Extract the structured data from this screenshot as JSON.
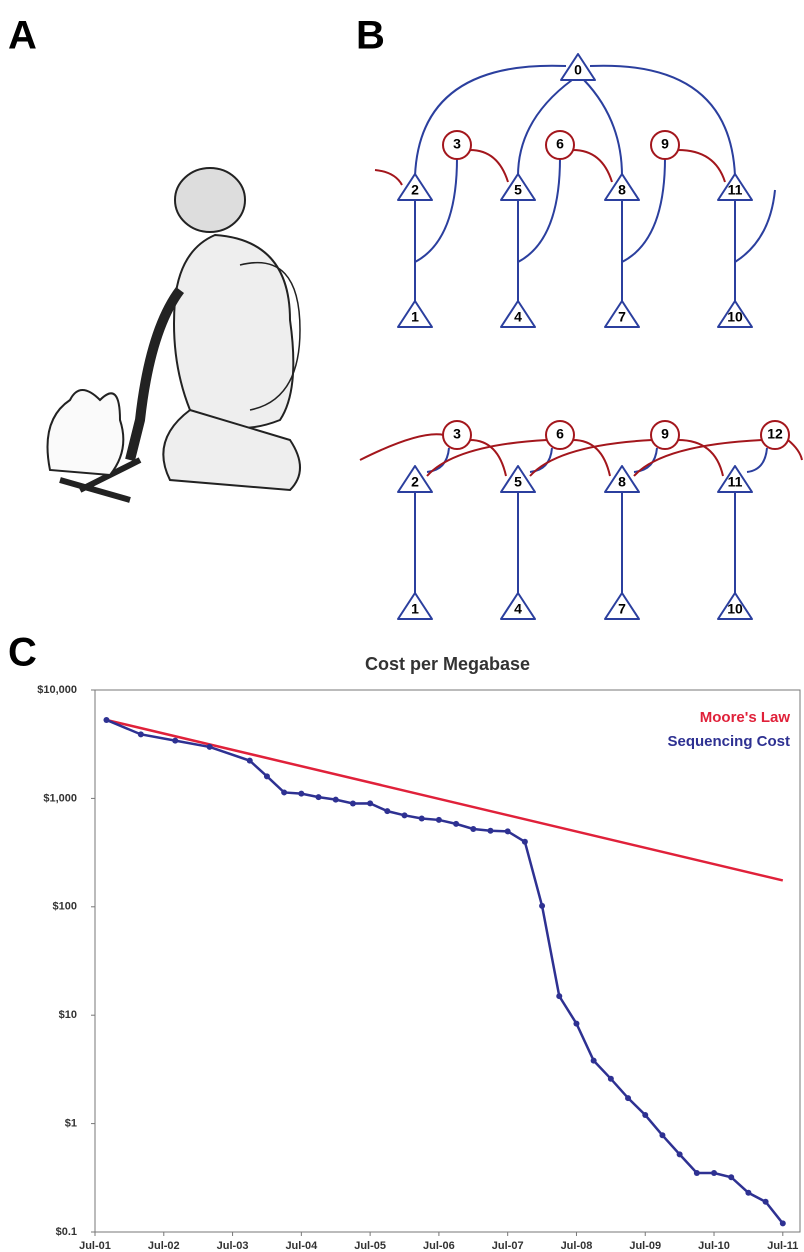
{
  "panels": {
    "a": "A",
    "b": "B",
    "c": "C"
  },
  "diagram": {
    "top_nodes": [
      "0",
      "2",
      "5",
      "8",
      "11",
      "3",
      "6",
      "9",
      "1",
      "4",
      "7",
      "10"
    ],
    "bottom_nodes": [
      "3",
      "6",
      "9",
      "12",
      "2",
      "5",
      "8",
      "11",
      "1",
      "4",
      "7",
      "10"
    ]
  },
  "chart_data": {
    "type": "line",
    "title": "Cost per Megabase",
    "log_scale_y": true,
    "legend": "top-right",
    "xlim": [
      "2001-07",
      "2011-10"
    ],
    "xticks": [
      {
        "value": "2001-07",
        "label": "Jul-01"
      },
      {
        "value": "2002-07",
        "label": "Jul-02"
      },
      {
        "value": "2003-07",
        "label": "Jul-03"
      },
      {
        "value": "2004-07",
        "label": "Jul-04"
      },
      {
        "value": "2005-07",
        "label": "Jul-05"
      },
      {
        "value": "2006-07",
        "label": "Jul-06"
      },
      {
        "value": "2007-07",
        "label": "Jul-07"
      },
      {
        "value": "2008-07",
        "label": "Jul-08"
      },
      {
        "value": "2009-07",
        "label": "Jul-09"
      },
      {
        "value": "2010-07",
        "label": "Jul-10"
      },
      {
        "value": "2011-07",
        "label": "Jul-11"
      }
    ],
    "ylim": [
      0.1,
      10000
    ],
    "yticks": [
      {
        "value": 0.1,
        "label": "$0.1"
      },
      {
        "value": 1,
        "label": "$1"
      },
      {
        "value": 10,
        "label": "$10"
      },
      {
        "value": 100,
        "label": "$100"
      },
      {
        "value": 1000,
        "label": "$1,000"
      },
      {
        "value": 10000,
        "label": "$10,000"
      }
    ],
    "series": [
      {
        "name": "Moore's Law",
        "color": "#e0213a",
        "markers": false,
        "x": [
          "2001-09",
          "2011-07"
        ],
        "values": [
          5292,
          175
        ]
      },
      {
        "name": "Sequencing Cost",
        "color": "#2e3192",
        "markers": true,
        "x": [
          "2001-09",
          "2002-03",
          "2002-09",
          "2003-03",
          "2003-10",
          "2004-01",
          "2004-04",
          "2004-07",
          "2004-10",
          "2005-01",
          "2005-04",
          "2005-07",
          "2005-10",
          "2006-01",
          "2006-04",
          "2006-07",
          "2006-10",
          "2007-01",
          "2007-04",
          "2007-07",
          "2007-10",
          "2008-01",
          "2008-04",
          "2008-07",
          "2008-10",
          "2009-01",
          "2009-04",
          "2009-07",
          "2009-10",
          "2010-01",
          "2010-04",
          "2010-07",
          "2010-10",
          "2011-01",
          "2011-04",
          "2011-07"
        ],
        "values": [
          5292,
          3898,
          3413,
          2986,
          2230,
          1598,
          1135,
          1107,
          1028,
          974,
          897,
          899,
          763,
          698,
          652,
          633,
          582,
          522,
          503,
          496,
          398,
          102,
          15.0,
          8.36,
          3.81,
          2.59,
          1.72,
          1.2,
          0.78,
          0.52,
          0.35,
          0.35,
          0.32,
          0.23,
          0.19,
          0.12
        ]
      }
    ]
  }
}
